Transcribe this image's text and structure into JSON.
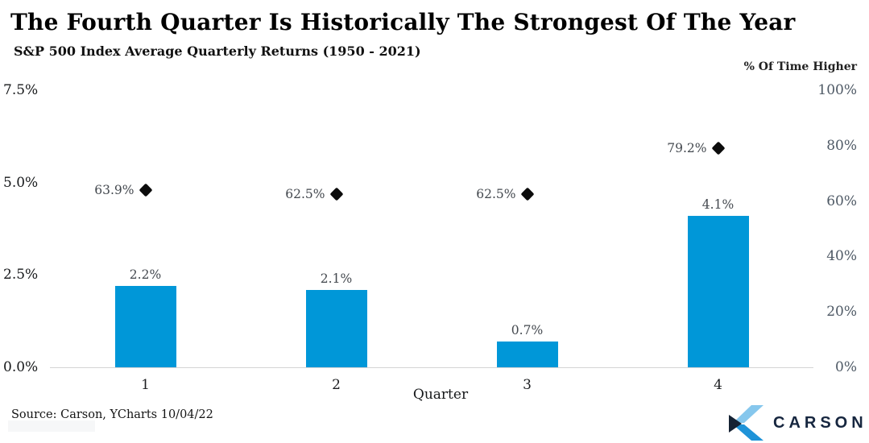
{
  "header": {
    "title": "The Fourth Quarter Is Historically The Strongest Of The Year",
    "subtitle": "S&P 500 Index Average Quarterly Returns (1950 - 2021)"
  },
  "chart_data": {
    "type": "bar",
    "title": "The Fourth Quarter Is Historically The Strongest Of The Year",
    "subtitle": "S&P 500 Index Average Quarterly Returns (1950 - 2021)",
    "categories": [
      "1",
      "2",
      "3",
      "4"
    ],
    "xlabel": "Quarter",
    "series": [
      {
        "name": "Average Quarterly Return",
        "type": "bar",
        "axis": "left",
        "color": "#0097d8",
        "values": [
          2.2,
          2.1,
          0.7,
          4.1
        ],
        "labels": [
          "2.2%",
          "2.1%",
          "0.7%",
          "4.1%"
        ]
      },
      {
        "name": "% Of Time Higher",
        "type": "scatter",
        "marker": "diamond",
        "axis": "right",
        "color": "#0c0c0c",
        "values": [
          63.9,
          62.5,
          62.5,
          79.2
        ],
        "labels": [
          "63.9%",
          "62.5%",
          "62.5%",
          "79.2%"
        ]
      }
    ],
    "left_axis": {
      "ticks": [
        "0.0%",
        "2.5%",
        "5.0%",
        "7.5%"
      ],
      "min": 0,
      "max": 7.5
    },
    "right_axis": {
      "title": "% Of Time Higher",
      "ticks": [
        "0%",
        "20%",
        "40%",
        "60%",
        "80%",
        "100%"
      ],
      "min": 0,
      "max": 100
    },
    "grid": false,
    "legend_position": "none"
  },
  "footer": {
    "source": "Source: Carson, YCharts 10/04/22",
    "brand": "CARSON"
  },
  "icons": {
    "brand_icon": "carson-chevron-icon",
    "marker_icon": "diamond-marker-icon"
  },
  "colors": {
    "bar": "#0097d8",
    "marker": "#0c0c0c",
    "baseline": "#d4d4d4",
    "right_axis_text": "#4e5965",
    "left_axis_text": "#16181a",
    "logo_navy": "#16263f",
    "logo_light_blue": "#86c7ed",
    "logo_mid_blue": "#1f93d8"
  }
}
